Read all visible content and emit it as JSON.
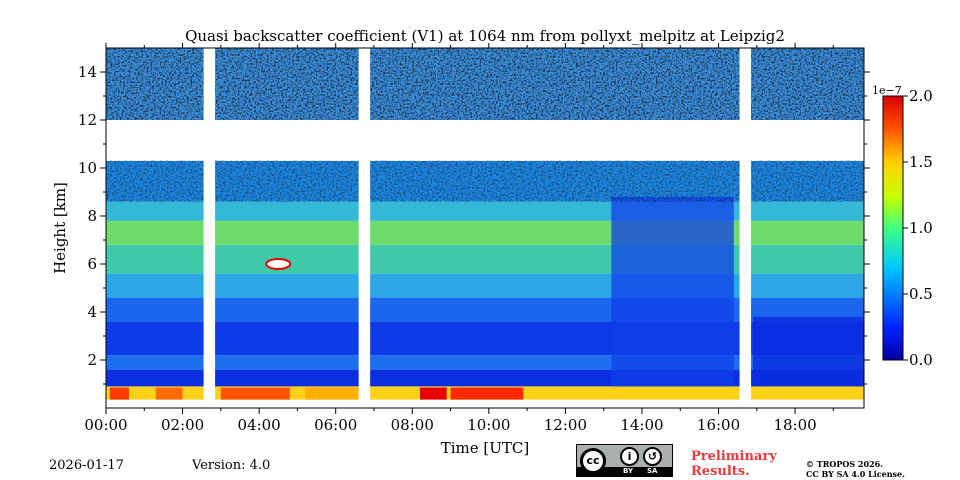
{
  "chart_data": {
    "type": "heatmap",
    "title": "Quasi backscatter coefficient (V1) at 1064 nm from pollyxt_melpitz at Leipzig2",
    "xlabel": "Time [UTC]",
    "ylabel": "Height [km]",
    "xlim": [
      0,
      19.8
    ],
    "ylim": [
      0.0,
      15.0
    ],
    "x_ticks": [
      0,
      2,
      4,
      6,
      8,
      10,
      12,
      14,
      16,
      18
    ],
    "x_tick_labels": [
      "00:00",
      "02:00",
      "04:00",
      "06:00",
      "08:00",
      "10:00",
      "12:00",
      "14:00",
      "16:00",
      "18:00"
    ],
    "y_ticks": [
      2,
      4,
      6,
      8,
      10,
      12,
      14
    ],
    "y_tick_labels": [
      "2",
      "4",
      "6",
      "8",
      "10",
      "12",
      "14"
    ],
    "colorbar": {
      "range": [
        0.0,
        2e-07
      ],
      "ticks": [
        0.0,
        0.5,
        1.0,
        1.5,
        2.0
      ],
      "tick_labels": [
        "0.0",
        "0.5",
        "1.0",
        "1.5",
        "2.0"
      ],
      "exponent_label": "1e−7",
      "colormap": "jet"
    },
    "data_gaps_hours": [
      [
        2.55,
        2.85
      ],
      [
        6.6,
        6.9
      ],
      [
        16.55,
        16.85
      ]
    ],
    "cloud_free_gap_km": [
      10.3,
      12.0
    ],
    "aerosol_layer_top_km": 8.8,
    "boundary_layer_top_km": 4.0
  },
  "footer": {
    "date": "2026-01-17",
    "version": "Version: 4.0",
    "preliminary_line1": "Preliminary",
    "preliminary_line2": "Results.",
    "copyright_line1": "© TROPOS 2026.",
    "copyright_line2": "CC BY SA 4.0 License.",
    "cc_label": "cc",
    "by_label": "BY",
    "sa_label": "SA"
  }
}
